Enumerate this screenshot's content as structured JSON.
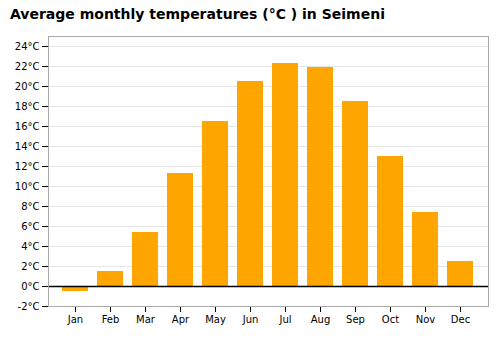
{
  "chart_data": {
    "type": "bar",
    "title": "Average monthly temperatures (°C ) in Seimeni",
    "categories": [
      "Jan",
      "Feb",
      "Mar",
      "Apr",
      "May",
      "Jun",
      "Jul",
      "Aug",
      "Sep",
      "Oct",
      "Nov",
      "Dec"
    ],
    "values": [
      -0.5,
      1.5,
      5.4,
      11.3,
      16.5,
      20.5,
      22.3,
      21.9,
      18.5,
      13.0,
      7.4,
      2.5
    ],
    "color": "#FFA500",
    "ylim": [
      -2,
      25
    ],
    "yticks": [
      {
        "value": -2,
        "label": "-2°C"
      },
      {
        "value": 0,
        "label": "0°C"
      },
      {
        "value": 2,
        "label": "2°C"
      },
      {
        "value": 4,
        "label": "4°C"
      },
      {
        "value": 6,
        "label": "6°C"
      },
      {
        "value": 8,
        "label": "8°C"
      },
      {
        "value": 10,
        "label": "10°C"
      },
      {
        "value": 12,
        "label": "12°C"
      },
      {
        "value": 14,
        "label": "14°C"
      },
      {
        "value": 16,
        "label": "16°C"
      },
      {
        "value": 18,
        "label": "18°C"
      },
      {
        "value": 20,
        "label": "20°C"
      },
      {
        "value": 22,
        "label": "22°C"
      },
      {
        "value": 24,
        "label": "24°C"
      }
    ],
    "grid": true
  }
}
